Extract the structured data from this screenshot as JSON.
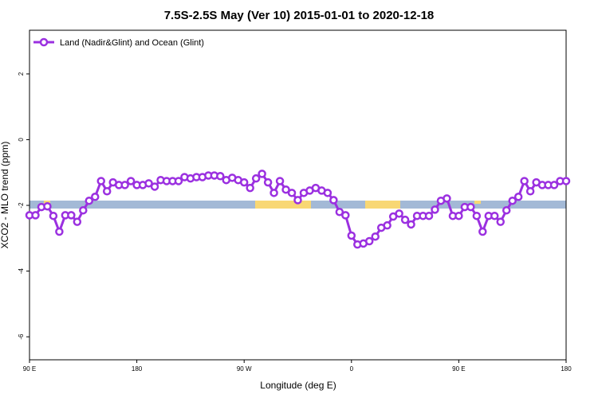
{
  "chart_data": {
    "type": "line",
    "title": "7.5S-2.5S May (Ver 10)   2015-01-01 to 2020-12-18",
    "x_label": "Longitude (deg E)",
    "y_label": "XCO2 - MLO trend (ppm)",
    "legend_position": "top-left",
    "grid": false,
    "xlim": [
      90,
      540
    ],
    "xticks": [
      {
        "value": 90,
        "label": "90 E"
      },
      180,
      {
        "value": 270,
        "label": "90 W"
      },
      {
        "value": 360,
        "label": "0"
      },
      {
        "value": 450,
        "label": "90 E"
      },
      {
        "value": 540,
        "label": "180"
      }
    ],
    "ylim": [
      -6.7,
      3.33
    ],
    "yticks": [
      -6,
      -4,
      -2,
      0,
      2
    ],
    "x": [
      90,
      95,
      100,
      105,
      110,
      115,
      120,
      125,
      130,
      135,
      140,
      145,
      150,
      155,
      160,
      165,
      170,
      175,
      180,
      185,
      190,
      195,
      200,
      205,
      210,
      215,
      220,
      225,
      230,
      235,
      240,
      245,
      250,
      255,
      260,
      265,
      270,
      275,
      280,
      285,
      290,
      295,
      300,
      305,
      310,
      315,
      320,
      325,
      330,
      335,
      340,
      345,
      350,
      355,
      360,
      365,
      370,
      375,
      380,
      385,
      390,
      395,
      400,
      405,
      410,
      415,
      420,
      425,
      430,
      435,
      440,
      445,
      450,
      455,
      460,
      465,
      470,
      475,
      480,
      485,
      490,
      495,
      500,
      505,
      510,
      515,
      520,
      525,
      530,
      535,
      540
    ],
    "series": [
      {
        "name": "Land (Nadir&Glint) and Ocean (Glint)",
        "color": "#9b30e0",
        "values": [
          -2.3,
          -2.3,
          -2.05,
          -2.03,
          -2.32,
          -2.8,
          -2.3,
          -2.3,
          -2.5,
          -2.15,
          -1.86,
          -1.74,
          -1.26,
          -1.57,
          -1.3,
          -1.38,
          -1.38,
          -1.26,
          -1.38,
          -1.38,
          -1.33,
          -1.43,
          -1.23,
          -1.26,
          -1.26,
          -1.26,
          -1.14,
          -1.18,
          -1.14,
          -1.14,
          -1.09,
          -1.09,
          -1.11,
          -1.23,
          -1.16,
          -1.23,
          -1.3,
          -1.47,
          -1.18,
          -1.04,
          -1.3,
          -1.62,
          -1.26,
          -1.52,
          -1.62,
          -1.84,
          -1.62,
          -1.55,
          -1.47,
          -1.55,
          -1.62,
          -1.84,
          -2.2,
          -2.3,
          -2.92,
          -3.19,
          -3.16,
          -3.09,
          -2.95,
          -2.68,
          -2.61,
          -2.34,
          -2.25,
          -2.44,
          -2.58,
          -2.32,
          -2.32,
          -2.32,
          -2.13,
          -1.86,
          -1.79,
          -2.32,
          -2.32,
          -2.05,
          -2.05,
          -2.32,
          -2.8,
          -2.32,
          -2.32,
          -2.5,
          -2.15,
          -1.86,
          -1.74,
          -1.26,
          -1.57,
          -1.3,
          -1.38,
          -1.38,
          -1.38,
          -1.26,
          -1.26
        ]
      }
    ]
  }
}
